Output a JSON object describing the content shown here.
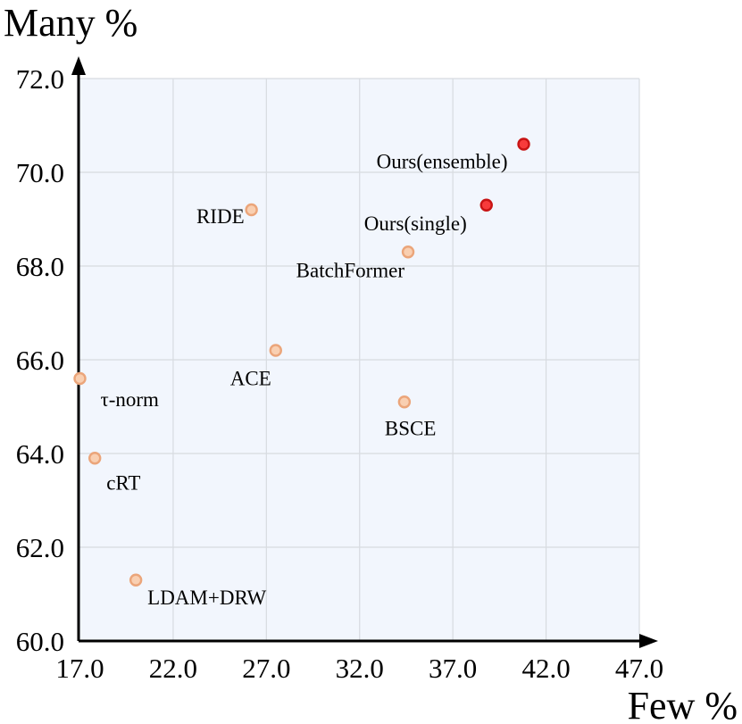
{
  "chart_data": {
    "type": "scatter",
    "xlabel": "Few %",
    "ylabel": "Many %",
    "xlim": [
      16.5,
      47.0
    ],
    "ylim": [
      60.0,
      72.0
    ],
    "xticks": [
      "17.0",
      "22.0",
      "27.0",
      "32.0",
      "37.0",
      "42.0",
      "47.0"
    ],
    "yticks": [
      "60.0",
      "62.0",
      "64.0",
      "66.0",
      "68.0",
      "70.0",
      "72.0"
    ],
    "grid": true,
    "points": [
      {
        "label": "Ours(ensemble)",
        "x": 40.8,
        "y": 70.6,
        "highlight": true
      },
      {
        "label": "Ours(single)",
        "x": 38.8,
        "y": 69.3,
        "highlight": true
      },
      {
        "label": "RIDE",
        "x": 26.2,
        "y": 69.2,
        "highlight": false
      },
      {
        "label": "BatchFormer",
        "x": 34.6,
        "y": 68.3,
        "highlight": false
      },
      {
        "label": "ACE",
        "x": 27.5,
        "y": 66.2,
        "highlight": false
      },
      {
        "label": "τ-norm",
        "x": 17.0,
        "y": 65.6,
        "highlight": false
      },
      {
        "label": "BSCE",
        "x": 34.4,
        "y": 65.1,
        "highlight": false
      },
      {
        "label": "cRT",
        "x": 17.8,
        "y": 63.9,
        "highlight": false
      },
      {
        "label": "LDAM+DRW",
        "x": 20.0,
        "y": 61.3,
        "highlight": false
      }
    ],
    "colors": {
      "plot_bg": "#f2f6fd",
      "grid": "#d7dbe0",
      "highlight_fill": "#f73b3b",
      "highlight_stroke": "#c81414",
      "normal_fill": "#f9cfb1",
      "normal_stroke": "#eba57a"
    }
  }
}
